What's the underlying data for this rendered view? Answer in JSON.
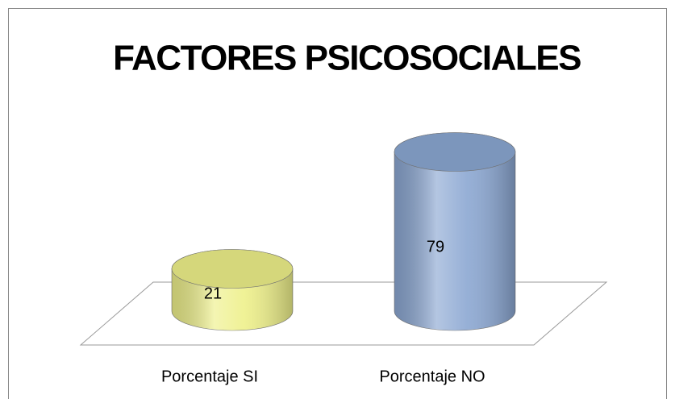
{
  "chart_data": {
    "type": "bar3d",
    "title": "FACTORES PSICOSOCIALES",
    "categories": [
      "Porcentaje SI",
      "Porcentaje NO"
    ],
    "values": [
      21,
      79
    ],
    "colors": [
      "#eef08a",
      "#8ba7d2"
    ]
  }
}
